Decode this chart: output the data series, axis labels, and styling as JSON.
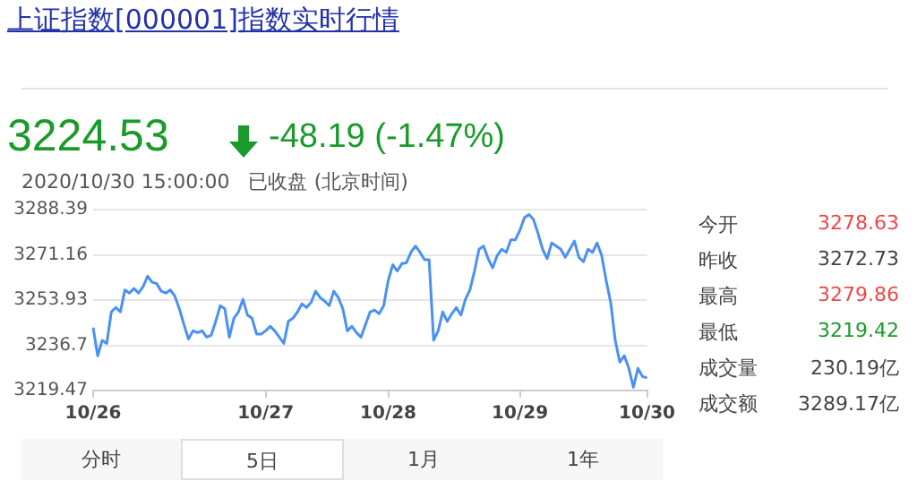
{
  "chart_data": {
    "type": "line",
    "title": "上证指数[000001]指数实时行情",
    "subtitle": "3224.53",
    "annotations": [
      "-48.19 (-1.47%)",
      "2020/10/30 15:00:00",
      "已收盘",
      "(北京时间)",
      "今开",
      "3278.63",
      "昨收",
      "3272.73",
      "最高",
      "3279.86",
      "最低",
      "3219.42",
      "成交量",
      "230.19亿",
      "成交额",
      "3289.17亿",
      "分时",
      "5日",
      "1月",
      "1年"
    ],
    "categories": [
      "10/26",
      null,
      null,
      null,
      null,
      null,
      null,
      null,
      null,
      null,
      null,
      null,
      null,
      null,
      null,
      null,
      null,
      null,
      null,
      null,
      null,
      null,
      null,
      null,
      null,
      null,
      null,
      null,
      null,
      null,
      null,
      null,
      null,
      null,
      null,
      null,
      null,
      null,
      "10/27",
      null,
      null,
      null,
      null,
      null,
      null,
      null,
      null,
      null,
      null,
      null,
      null,
      null,
      null,
      null,
      null,
      null,
      null,
      null,
      null,
      null,
      null,
      null,
      null,
      null,
      null,
      "10/28",
      null,
      null,
      null,
      null,
      null,
      null,
      null,
      null,
      null,
      null,
      null,
      null,
      null,
      null,
      null,
      null,
      null,
      null,
      null,
      null,
      null,
      null,
      null,
      null,
      null,
      null,
      null,
      null,
      "10/29",
      null,
      null,
      null,
      null,
      null,
      null,
      null,
      null,
      null,
      null,
      null,
      null,
      null,
      null,
      null,
      null,
      null,
      null,
      null,
      null,
      null,
      null,
      null,
      null,
      null,
      null,
      null,
      "10/30"
    ],
    "series": [
      {
        "color": "#4a90f5",
        "values": [
          3243.4,
          3232.7,
          3238.6,
          3237.4,
          3249.4,
          3251.1,
          3249.4,
          3257.8,
          3256.6,
          3258.3,
          3256.6,
          3259.0,
          3263.0,
          3260.7,
          3260.2,
          3257.3,
          3256.6,
          3257.8,
          3255.4,
          3250.6,
          3244.6,
          3239.1,
          3242.2,
          3241.5,
          3242.2,
          3239.8,
          3240.5,
          3245.8,
          3251.8,
          3250.6,
          3239.8,
          3247.0,
          3249.4,
          3254.2,
          3248.2,
          3247.0,
          3241.0,
          3241.0,
          3242.2,
          3243.9,
          3242.2,
          3239.8,
          3237.4,
          3245.8,
          3247.0,
          3249.4,
          3252.5,
          3251.1,
          3253.0,
          3257.3,
          3254.9,
          3253.5,
          3251.8,
          3257.3,
          3254.9,
          3250.6,
          3242.2,
          3243.9,
          3241.5,
          3239.8,
          3244.6,
          3249.4,
          3250.1,
          3248.7,
          3251.8,
          3261.4,
          3267.4,
          3265.0,
          3267.8,
          3268.1,
          3272.1,
          3274.5,
          3272.1,
          3269.3,
          3269.3,
          3238.6,
          3242.2,
          3249.4,
          3245.8,
          3248.7,
          3251.1,
          3248.2,
          3254.2,
          3257.8,
          3265.0,
          3273.3,
          3274.5,
          3269.7,
          3266.2,
          3270.9,
          3273.3,
          3272.1,
          3276.9,
          3276.9,
          3280.5,
          3285.3,
          3286.5,
          3284.6,
          3279.3,
          3273.3,
          3269.7,
          3275.7,
          3274.5,
          3273.3,
          3270.2,
          3273.3,
          3276.4,
          3270.2,
          3268.5,
          3273.3,
          3272.1,
          3275.7,
          3271.0,
          3261.4,
          3253.0,
          3238.6,
          3230.3,
          3232.7,
          3227.9,
          3220.7,
          3227.9,
          3224.8,
          3224.3
        ]
      }
    ],
    "ylim": [
      3219.47,
      3288.39
    ],
    "yticks": [
      3219.47,
      3236.7,
      3253.93,
      3271.16,
      3288.39
    ],
    "grid": "y",
    "marker": "none",
    "line_style": "solid",
    "legend": false
  }
}
